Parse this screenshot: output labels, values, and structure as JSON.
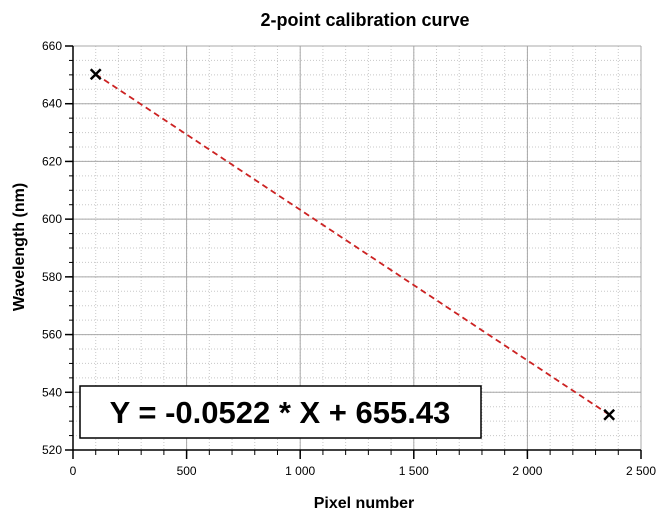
{
  "chart_data": {
    "type": "scatter",
    "title": "2-point calibration curve",
    "xlabel": "Pixel number",
    "ylabel": "Wavelength (nm)",
    "xlim": [
      0,
      2500
    ],
    "ylim": [
      520,
      660
    ],
    "x_ticks": [
      0,
      500,
      1000,
      1500,
      2000,
      2500
    ],
    "x_tick_labels": [
      "0",
      "500",
      "1 000",
      "1 500",
      "2 000",
      "2 500"
    ],
    "y_ticks": [
      520,
      540,
      560,
      580,
      600,
      620,
      640,
      660
    ],
    "y_tick_labels": [
      "520",
      "540",
      "560",
      "580",
      "600",
      "620",
      "640",
      "660"
    ],
    "grid": true,
    "minor_grid": true,
    "points": [
      {
        "x": 100,
        "y": 650.2
      },
      {
        "x": 2360,
        "y": 532.2
      }
    ],
    "fit_line": {
      "slope": -0.0522,
      "intercept": 655.43,
      "x_range": [
        100,
        2360
      ],
      "color": "#cc2222",
      "style": "dashed"
    },
    "annotation": "Y = -0.0522 * X + 655.43",
    "marker_color": "#000000"
  }
}
